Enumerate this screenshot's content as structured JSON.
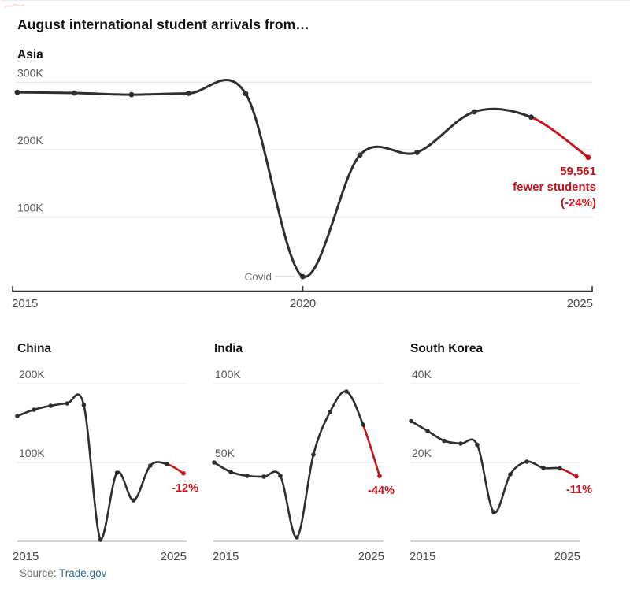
{
  "window": {
    "title": "August international student arrivals from…"
  },
  "source": {
    "prefix": "Source: ",
    "link_text": "Trade.gov"
  },
  "colors": {
    "line": "#2e2e2e",
    "decline": "#c4161c",
    "grid": "#e3e3e3",
    "baseline": "#b9b9b9",
    "dark_axis": "#333333",
    "tick_label": "#575757",
    "year_label": "#4a4a4a",
    "point_label_text": "#6b6b6b",
    "point_label_line": "#aaaaaa",
    "stray_mark": "#f2cfc9"
  },
  "chart_data": [
    {
      "id": "asia",
      "type": "line",
      "title": "Asia",
      "x": [
        2015,
        2016,
        2017,
        2018,
        2019,
        2020,
        2021,
        2022,
        2023,
        2024,
        2025
      ],
      "series": [
        {
          "name": "August arrivals",
          "values": [
            285000,
            284000,
            281500,
            283500,
            283000,
            12000,
            192000,
            196000,
            256000,
            248171,
            188610
          ]
        }
      ],
      "decline_start_year": 2024,
      "y_ticks": [
        {
          "label": "300K",
          "value": 300000
        },
        {
          "label": "200K",
          "value": 200000
        },
        {
          "label": "100K",
          "value": 100000
        }
      ],
      "x_tick_labels": [
        "2015",
        "2020",
        "2025"
      ],
      "ylim": [
        0,
        310000
      ],
      "grid": true,
      "legend": false,
      "annotation": {
        "lines": [
          "59,561",
          "fewer students",
          "(-24%)"
        ]
      },
      "point_label": {
        "text": "Covid",
        "year": 2020
      }
    },
    {
      "id": "china",
      "type": "line",
      "title": "China",
      "x": [
        2015,
        2016,
        2017,
        2018,
        2019,
        2020,
        2021,
        2022,
        2023,
        2024,
        2025
      ],
      "series": [
        {
          "name": "August arrivals",
          "values": [
            159000,
            167000,
            172000,
            175000,
            173000,
            2000,
            87000,
            52000,
            96000,
            98000,
            86240
          ]
        }
      ],
      "decline_start_year": 2024,
      "y_ticks": [
        {
          "label": "200K",
          "value": 200000
        },
        {
          "label": "100K",
          "value": 100000
        }
      ],
      "x_tick_labels": [
        "2015",
        "2025"
      ],
      "ylim": [
        0,
        210000
      ],
      "grid": true,
      "legend": false,
      "annotation": {
        "lines": [
          "-12%"
        ]
      }
    },
    {
      "id": "india",
      "type": "line",
      "title": "India",
      "x": [
        2015,
        2016,
        2017,
        2018,
        2019,
        2020,
        2021,
        2022,
        2023,
        2024,
        2025
      ],
      "series": [
        {
          "name": "August arrivals",
          "values": [
            50000,
            44000,
            41500,
            41000,
            41500,
            2500,
            55000,
            82000,
            95000,
            74000,
            41440
          ]
        }
      ],
      "decline_start_year": 2024,
      "y_ticks": [
        {
          "label": "100K",
          "value": 100000
        },
        {
          "label": "50K",
          "value": 50000
        }
      ],
      "x_tick_labels": [
        "2015",
        "2025"
      ],
      "ylim": [
        0,
        105000
      ],
      "grid": true,
      "legend": false,
      "annotation": {
        "lines": [
          "-44%"
        ]
      }
    },
    {
      "id": "south-korea",
      "type": "line",
      "title": "South Korea",
      "x": [
        2015,
        2016,
        2017,
        2018,
        2019,
        2020,
        2021,
        2022,
        2023,
        2024,
        2025
      ],
      "series": [
        {
          "name": "August arrivals",
          "values": [
            30500,
            28000,
            25500,
            24800,
            24500,
            7400,
            17000,
            20200,
            18600,
            18500,
            16465
          ]
        }
      ],
      "decline_start_year": 2024,
      "y_ticks": [
        {
          "label": "40K",
          "value": 40000
        },
        {
          "label": "20K",
          "value": 20000
        }
      ],
      "x_tick_labels": [
        "2015",
        "2025"
      ],
      "ylim": [
        0,
        42000
      ],
      "grid": true,
      "legend": false,
      "annotation": {
        "lines": [
          "-11%"
        ]
      }
    }
  ]
}
